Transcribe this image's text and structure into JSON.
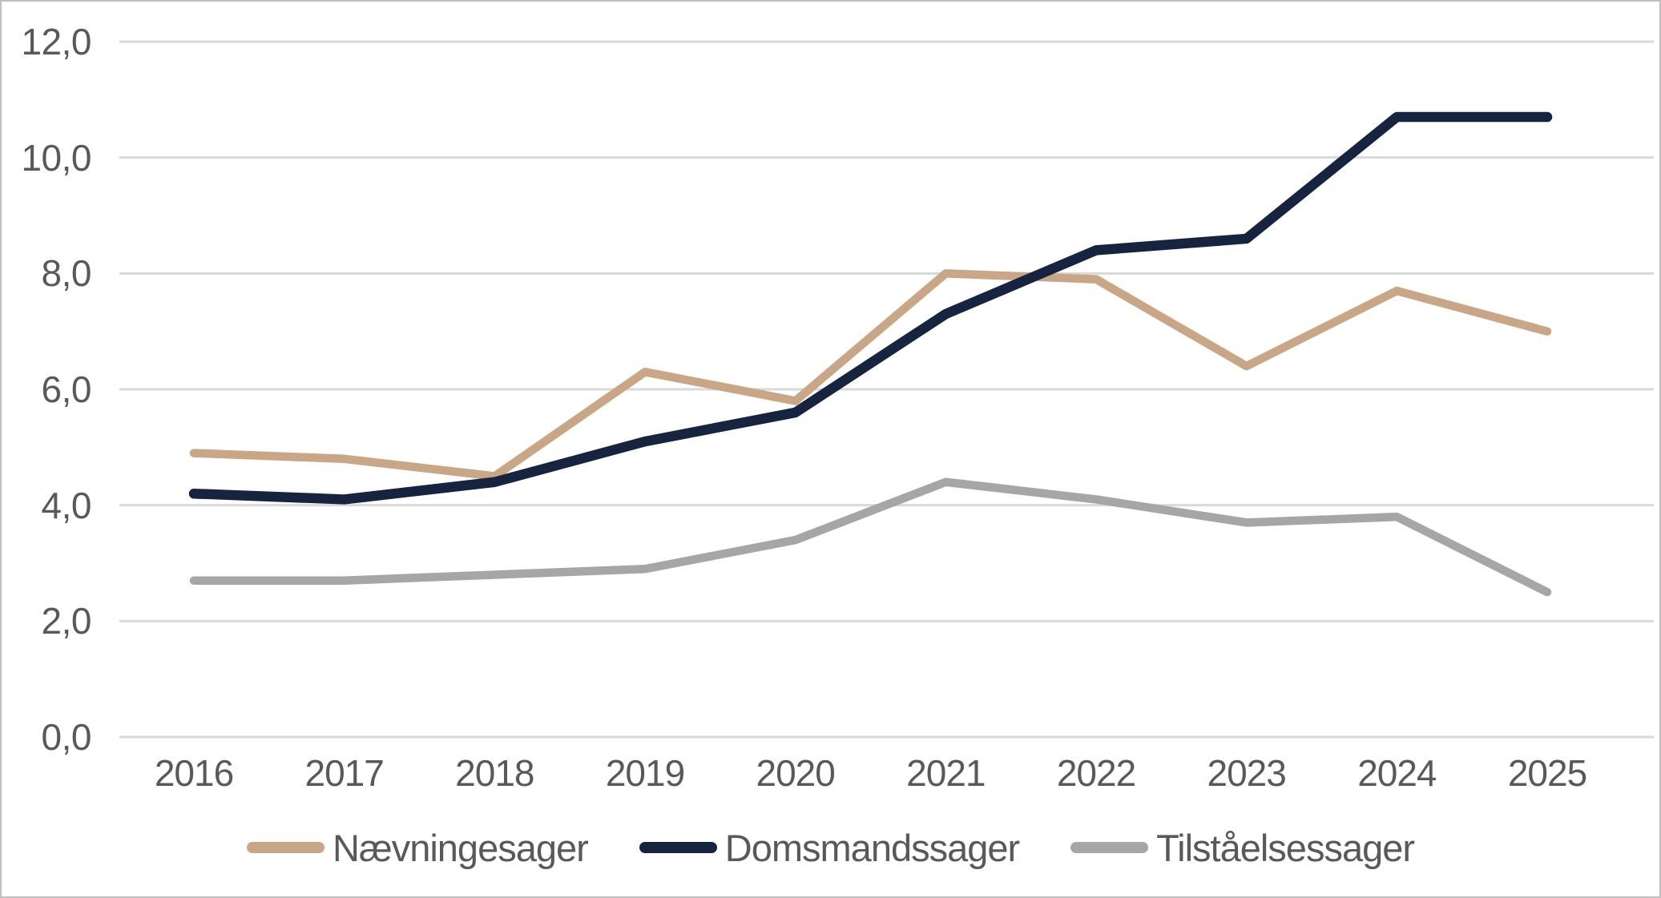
{
  "chart_data": {
    "type": "line",
    "title": "",
    "xlabel": "",
    "ylabel": "",
    "ylim": [
      0,
      12
    ],
    "grid": true,
    "legend_position": "bottom",
    "decimal_style": "comma",
    "categories": [
      "2016",
      "2017",
      "2018",
      "2019",
      "2020",
      "2021",
      "2022",
      "2023",
      "2024",
      "2025"
    ],
    "yticks": [
      {
        "label": "12,0",
        "value": 12
      },
      {
        "label": "10,0",
        "value": 10
      },
      {
        "label": "8,0",
        "value": 8
      },
      {
        "label": "6,0",
        "value": 6
      },
      {
        "label": "4,0",
        "value": 4
      },
      {
        "label": "2,0",
        "value": 2
      },
      {
        "label": "0,0",
        "value": 0
      }
    ],
    "series": [
      {
        "id": "naevningesager",
        "name": "Nævningesager",
        "color": "#C8A686",
        "values": [
          4.9,
          4.8,
          4.5,
          6.3,
          5.8,
          8.0,
          7.9,
          6.4,
          7.7,
          7.0
        ]
      },
      {
        "id": "domsmandssager",
        "name": "Domsmandssager",
        "color": "#16243F",
        "values": [
          4.2,
          4.1,
          4.4,
          5.1,
          5.6,
          7.3,
          8.4,
          8.6,
          10.7,
          10.7
        ]
      },
      {
        "id": "tilstaaelsessager",
        "name": "Tilståelsessager",
        "color": "#A6A6A6",
        "values": [
          2.7,
          2.7,
          2.8,
          2.9,
          3.4,
          4.4,
          4.1,
          3.7,
          3.8,
          2.5
        ]
      }
    ],
    "colors": {
      "gridline": "#D9D9D9",
      "axis_text": "#595959",
      "border": "#BFBFBF",
      "background": "#FFFFFF"
    }
  }
}
